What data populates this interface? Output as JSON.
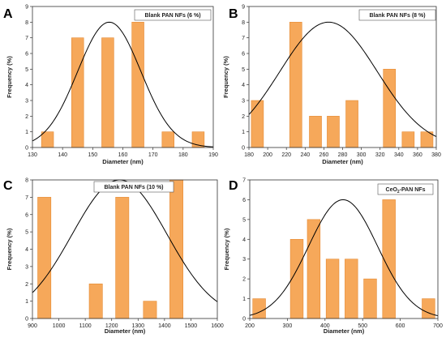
{
  "chart_data": [
    {
      "type": "bar",
      "panel": "A",
      "legend": "Blank PAN NFs (6 %)",
      "legend_placement": "top-right",
      "xlabel": "Diameter (nm)",
      "ylabel": "Frequency (%)",
      "xlim": [
        130,
        190
      ],
      "ylim": [
        0,
        9
      ],
      "xticks": [
        130,
        140,
        150,
        160,
        170,
        180,
        190
      ],
      "yticks": [
        0,
        1,
        2,
        3,
        4,
        5,
        6,
        7,
        8,
        9
      ],
      "bin_width": 4,
      "bars": [
        {
          "x": 135,
          "value": 1
        },
        {
          "x": 145,
          "value": 7
        },
        {
          "x": 155,
          "value": 7
        },
        {
          "x": 165,
          "value": 8
        },
        {
          "x": 175,
          "value": 1
        },
        {
          "x": 185,
          "value": 1
        }
      ],
      "fit": {
        "type": "normal",
        "mean": 155.5,
        "sd": 10.5,
        "peak": 8
      }
    },
    {
      "type": "bar",
      "panel": "B",
      "legend": "Blank PAN NFs (8 %)",
      "legend_placement": "top-right",
      "xlabel": "Diameter (nm)",
      "ylabel": "Frequency (%)",
      "xlim": [
        180,
        380
      ],
      "ylim": [
        0,
        9
      ],
      "xticks": [
        180,
        200,
        220,
        240,
        260,
        280,
        300,
        320,
        340,
        360,
        380
      ],
      "yticks": [
        0,
        1,
        2,
        3,
        4,
        5,
        6,
        7,
        8,
        9
      ],
      "bin_width": 13,
      "bars": [
        {
          "x": 189,
          "value": 3
        },
        {
          "x": 230,
          "value": 8
        },
        {
          "x": 251,
          "value": 2
        },
        {
          "x": 270,
          "value": 2
        },
        {
          "x": 290,
          "value": 3
        },
        {
          "x": 330,
          "value": 5
        },
        {
          "x": 350,
          "value": 1
        },
        {
          "x": 370,
          "value": 1
        }
      ],
      "fit": {
        "type": "normal",
        "mean": 265,
        "sd": 52,
        "peak": 8
      }
    },
    {
      "type": "bar",
      "panel": "C",
      "legend": "Blank PAN NFs (10 %)",
      "legend_placement": "top-left",
      "xlabel": "Diameter (nm)",
      "ylabel": "Frequency (%)",
      "xlim": [
        900,
        1600
      ],
      "ylim": [
        0,
        8
      ],
      "xticks": [
        900,
        1000,
        1100,
        1200,
        1300,
        1400,
        1500,
        1600
      ],
      "yticks": [
        0,
        1,
        2,
        3,
        4,
        5,
        6,
        7,
        8
      ],
      "bin_width": 50,
      "bars": [
        {
          "x": 945,
          "value": 7
        },
        {
          "x": 1140,
          "value": 2
        },
        {
          "x": 1240,
          "value": 7
        },
        {
          "x": 1345,
          "value": 1
        },
        {
          "x": 1445,
          "value": 8
        }
      ],
      "fit": {
        "type": "normal",
        "mean": 1230,
        "sd": 180,
        "peak": 8
      }
    },
    {
      "type": "bar",
      "panel": "D",
      "legend": "CeO",
      "legend_sub": "2",
      "legend_suffix": "-PAN NFs",
      "legend_placement": "top-right",
      "xlabel": "Diameter (nm)",
      "ylabel": "Frequency (%)",
      "xlim": [
        200,
        700
      ],
      "ylim": [
        0,
        7
      ],
      "xticks": [
        200,
        300,
        400,
        500,
        600,
        700
      ],
      "yticks": [
        0,
        1,
        2,
        3,
        4,
        5,
        6,
        7
      ],
      "bin_width": 34,
      "bars": [
        {
          "x": 225,
          "value": 1
        },
        {
          "x": 325,
          "value": 4
        },
        {
          "x": 370,
          "value": 5
        },
        {
          "x": 420,
          "value": 3
        },
        {
          "x": 470,
          "value": 3
        },
        {
          "x": 520,
          "value": 2
        },
        {
          "x": 570,
          "value": 6
        },
        {
          "x": 675,
          "value": 1
        }
      ],
      "fit": {
        "type": "normal",
        "mean": 448,
        "sd": 92,
        "peak": 6
      }
    }
  ],
  "colors": {
    "bar_fill": "#f6a85a",
    "bar_stroke": "#e58a33",
    "fit_line": "#000000",
    "axis": "#333333"
  }
}
